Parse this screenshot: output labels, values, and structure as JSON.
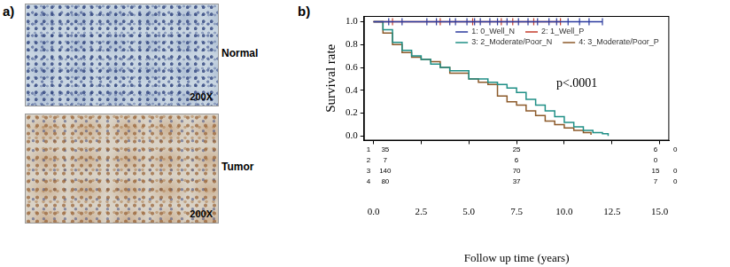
{
  "figure": {
    "panel_a": {
      "label": "a)",
      "images": [
        {
          "label": "Normal",
          "magnification": "200X"
        },
        {
          "label": "Tumor",
          "magnification": "200X"
        }
      ]
    },
    "panel_b": {
      "label": "b)"
    }
  },
  "chart_data": {
    "type": "line",
    "line_style": "step",
    "x_label": "Follow up time (years)",
    "y_label": "Survival rate",
    "xlim": [
      -0.5,
      15.5
    ],
    "xticks": [
      {
        "value": 0,
        "label": "0.0"
      },
      {
        "value": 2.5,
        "label": "2.5"
      },
      {
        "value": 5,
        "label": "5.0"
      },
      {
        "value": 7.5,
        "label": "7.5"
      },
      {
        "value": 10,
        "label": "10.0"
      },
      {
        "value": 12.5,
        "label": "12.5"
      },
      {
        "value": 15,
        "label": "15.0"
      }
    ],
    "ylim": [
      -0.04,
      1.05
    ],
    "yticks": [
      {
        "value": 0,
        "label": "0.0"
      },
      {
        "value": 0.2,
        "label": "0.2"
      },
      {
        "value": 0.4,
        "label": "0.4"
      },
      {
        "value": 0.6,
        "label": "0.6"
      },
      {
        "value": 0.8,
        "label": "0.8"
      },
      {
        "value": 1,
        "label": "1.0"
      }
    ],
    "grid": false,
    "legend": "upper right",
    "annotations": [
      {
        "text": "p<.0001"
      }
    ],
    "series": [
      {
        "name": "1: 0_Well_N",
        "color": "#2b3a9e",
        "marker": "tick",
        "x": [
          0,
          12.0
        ],
        "values": [
          1.0,
          1.0
        ],
        "censored": [
          0.8,
          1.5,
          2.8,
          3.3,
          4.0,
          4.3,
          4.9,
          5.3,
          5.6,
          6.1,
          6.5,
          7.0,
          7.6,
          8.1,
          8.6,
          9.2,
          9.6,
          10.2,
          10.8,
          11.3,
          12.0
        ]
      },
      {
        "name": "2: 1_Well_P",
        "color": "#c43c2c",
        "marker": "tick",
        "x": [
          0,
          9.8
        ],
        "values": [
          1.0,
          1.0
        ],
        "censored": [
          1.0,
          3.5,
          5.2,
          6.7,
          7.3,
          8.4,
          9.8
        ]
      },
      {
        "name": "3: 2_Moderate/Poor_N",
        "color": "#1f8f86",
        "x": [
          0,
          0.5,
          1.0,
          1.5,
          2.0,
          2.5,
          3.0,
          3.5,
          4.0,
          5.0,
          6.0,
          6.5,
          7.0,
          7.5,
          8.0,
          8.5,
          9.0,
          9.5,
          10.0,
          10.5,
          11.0,
          11.5,
          12.0,
          12.3
        ],
        "values": [
          1.0,
          0.93,
          0.82,
          0.75,
          0.7,
          0.67,
          0.63,
          0.6,
          0.57,
          0.5,
          0.47,
          0.45,
          0.42,
          0.38,
          0.32,
          0.27,
          0.22,
          0.17,
          0.12,
          0.08,
          0.05,
          0.03,
          0.02,
          0.0
        ]
      },
      {
        "name": "4: 3_Moderate/Poor_P",
        "color": "#8c5a2a",
        "x": [
          0,
          0.5,
          1.0,
          1.5,
          2.0,
          2.5,
          3.0,
          3.5,
          4.0,
          5.0,
          5.5,
          6.0,
          6.5,
          7.0,
          7.5,
          8.0,
          8.5,
          9.0,
          9.5,
          10.0,
          10.5,
          11.0,
          11.4
        ],
        "values": [
          1.0,
          0.9,
          0.8,
          0.73,
          0.69,
          0.67,
          0.65,
          0.6,
          0.55,
          0.5,
          0.47,
          0.45,
          0.35,
          0.3,
          0.27,
          0.22,
          0.18,
          0.13,
          0.1,
          0.07,
          0.05,
          0.03,
          0.01
        ]
      }
    ],
    "at_risk": [
      {
        "label": "1",
        "counts": [
          35,
          25,
          6,
          0
        ]
      },
      {
        "label": "2",
        "counts": [
          7,
          6,
          0,
          null
        ]
      },
      {
        "label": "3",
        "counts": [
          140,
          70,
          15,
          0
        ]
      },
      {
        "label": "4",
        "counts": [
          80,
          37,
          7,
          0
        ]
      }
    ]
  }
}
